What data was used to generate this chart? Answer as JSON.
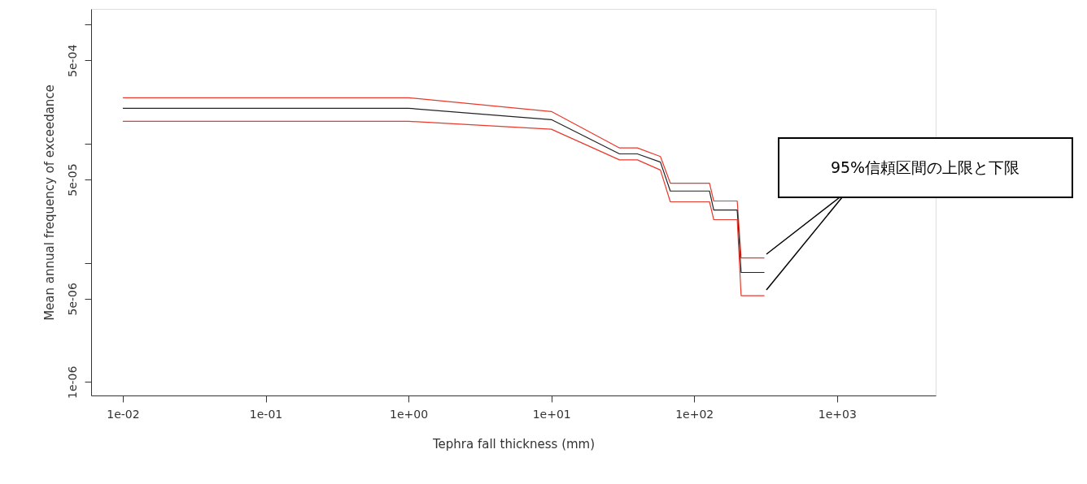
{
  "chart_data": {
    "type": "line",
    "xlabel": "Tephra fall thickness (mm)",
    "ylabel": "Mean annual frequency of exceedance",
    "log": "xy",
    "grid": false,
    "line_style": "solid",
    "marker": "none",
    "xlim": [
      0.006,
      4900
    ],
    "ylim": [
      7.7e-07,
      0.00135
    ],
    "xticks": [
      {
        "value": 0.01,
        "label": "1e-02"
      },
      {
        "value": 0.1,
        "label": "1e-01"
      },
      {
        "value": 1,
        "label": "1e+00"
      },
      {
        "value": 10,
        "label": "1e+01"
      },
      {
        "value": 100,
        "label": "1e+02"
      },
      {
        "value": 1000,
        "label": "1e+03"
      }
    ],
    "yticks": [
      {
        "value": 1e-06,
        "label": "1e-06"
      },
      {
        "value": 5e-06,
        "label": "5e-06"
      },
      {
        "value": 1e-05,
        "label": null
      },
      {
        "value": 5e-05,
        "label": "5e-05"
      },
      {
        "value": 0.0001,
        "label": null
      },
      {
        "value": 0.0005,
        "label": "5e-04"
      },
      {
        "value": 0.001,
        "label": null
      }
    ],
    "x": [
      0.01,
      1,
      10,
      30,
      40,
      58,
      68,
      128,
      137,
      200,
      213,
      310
    ],
    "series": [
      {
        "color": "#e8392b",
        "values": [
          0.000243,
          0.000243,
          0.000186,
          9.2e-05,
          9.2e-05,
          7.8e-05,
          4.66e-05,
          4.66e-05,
          3.3e-05,
          3.3e-05,
          1.1e-05,
          1.1e-05
        ]
      },
      {
        "color": "#222222",
        "values": [
          0.000198,
          0.000198,
          0.000159,
          8.2e-05,
          8.2e-05,
          7e-05,
          4e-05,
          4e-05,
          2.77e-05,
          2.77e-05,
          8.3e-06,
          8.3e-06
        ]
      },
      {
        "color": "#e8392b",
        "values": [
          0.000154,
          0.000154,
          0.000132,
          7.3e-05,
          7.3e-05,
          6e-05,
          3.25e-05,
          3.25e-05,
          2.3e-05,
          2.3e-05,
          5.3e-06,
          5.3e-06
        ]
      }
    ],
    "annotations": [
      "95%信頼区間の上限と下限"
    ]
  }
}
